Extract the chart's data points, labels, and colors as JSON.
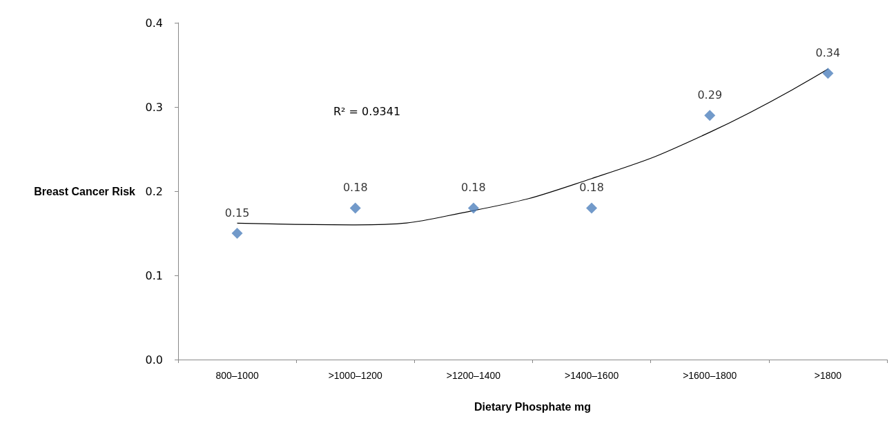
{
  "chart_data": {
    "type": "scatter",
    "xlabel": "Dietary Phosphate mg",
    "ylabel": "Breast Cancer Risk",
    "categories": [
      "800–1000",
      ">1000–1200",
      ">1200–1400",
      ">1400–1600",
      ">1600–1800",
      ">1800"
    ],
    "series": [
      {
        "color": "#4f81bd",
        "marker": "diamond",
        "values": [
          0.15,
          0.18,
          0.18,
          0.18,
          0.29,
          0.34
        ],
        "data_labels": true
      },
      {
        "type": "line",
        "color": "#000000",
        "marker": "none",
        "x": [
          "800–1000",
          ">1000–1200",
          ">1200–1400",
          ">1400–1600",
          ">1600–1800",
          ">1800"
        ],
        "values": [
          0.162,
          0.16,
          0.177,
          0.215,
          0.27,
          0.345
        ]
      }
    ],
    "annotations": [
      "R² = 0.9341"
    ],
    "ylim": [
      0,
      0.4
    ],
    "yticks": [
      {
        "value": 0,
        "label": "0.0"
      },
      0.1,
      0.2,
      0.3,
      0.4
    ],
    "grid": false
  }
}
